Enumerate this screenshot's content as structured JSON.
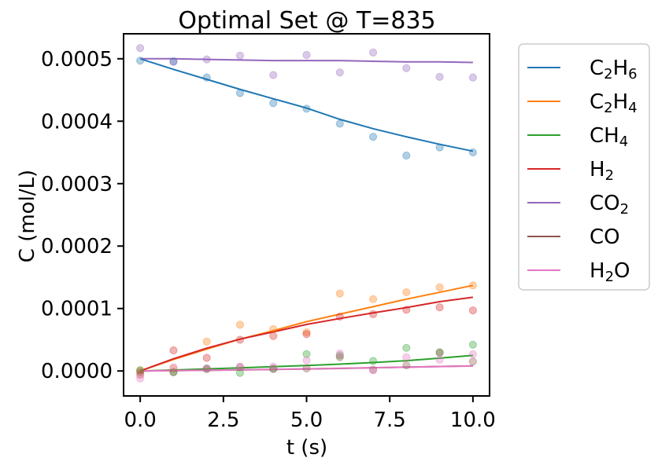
{
  "chart_data": {
    "type": "line",
    "title": "Optimal Set @ T=835",
    "xlabel": "t (s)",
    "ylabel": "C (mol/L)",
    "xlim": [
      -0.5,
      10.5
    ],
    "ylim": [
      -4e-05,
      0.00054
    ],
    "x_ticks": [
      0,
      2.5,
      5,
      7.5,
      10
    ],
    "x_tick_labels": [
      "0.0",
      "2.5",
      "5.0",
      "7.5",
      "10.0"
    ],
    "y_ticks": [
      0,
      0.0001,
      0.0002,
      0.0003,
      0.0004,
      0.0005
    ],
    "y_tick_labels": [
      "0.0000",
      "0.0001",
      "0.0002",
      "0.0003",
      "0.0004",
      "0.0005"
    ],
    "grid": false,
    "legend_position": "outside-right",
    "markers_x": [
      0,
      1,
      2,
      3,
      4,
      5,
      6,
      7,
      8,
      9,
      10
    ],
    "series": [
      {
        "name": "C2H6",
        "name_base": "C",
        "name_sub1": "2",
        "name_mid": "H",
        "name_sub2": "6",
        "color": "#1f77b4",
        "fit": {
          "t": [
            0,
            1,
            2,
            3,
            4,
            5,
            6,
            7,
            8,
            9,
            10
          ],
          "c": [
            0.0005,
            0.000483,
            0.000467,
            0.000451,
            0.000436,
            0.000421,
            0.000403,
            0.000388,
            0.000375,
            0.000363,
            0.000352
          ]
        },
        "observed": [
          0.000497,
          0.000496,
          0.00047,
          0.000445,
          0.000429,
          0.00042,
          0.000396,
          0.000375,
          0.000345,
          0.000358,
          0.00035
        ]
      },
      {
        "name": "C2H4",
        "name_base": "C",
        "name_sub1": "2",
        "name_mid": "H",
        "name_sub2": "4",
        "color": "#ff7f0e",
        "fit": {
          "t": [
            0,
            1,
            2,
            3,
            4,
            5,
            6,
            7,
            8,
            9,
            10
          ],
          "c": [
            0,
            1.85e-05,
            3.5e-05,
            5.1e-05,
            6.45e-05,
            7.9e-05,
            9.1e-05,
            0.000103,
            0.000115,
            0.000126,
            0.000137
          ]
        },
        "observed": [
          1e-06,
          4e-06,
          4.7e-05,
          7.4e-05,
          6.7e-05,
          6.2e-05,
          0.000124,
          0.000115,
          0.000126,
          0.000134,
          0.000137
        ]
      },
      {
        "name": "CH4",
        "name_base": "CH",
        "name_sub1": "4",
        "name_mid": "",
        "name_sub2": "",
        "color": "#2ca02c",
        "fit": {
          "t": [
            0,
            1,
            2,
            3,
            4,
            5,
            6,
            7,
            8,
            9,
            10
          ],
          "c": [
            0,
            1.5e-06,
            3.2e-06,
            5e-06,
            6.8e-06,
            8.8e-06,
            1.1e-05,
            1.34e-05,
            1.65e-05,
            2.05e-05,
            2.5e-05
          ]
        },
        "observed": [
          1e-06,
          -2e-06,
          4e-06,
          -3e-06,
          4e-06,
          2.7e-05,
          2.5e-05,
          1.6e-05,
          3.7e-05,
          3e-05,
          4.2e-05
        ]
      },
      {
        "name": "H2",
        "name_base": "H",
        "name_sub1": "2",
        "name_mid": "",
        "name_sub2": "",
        "color": "#d62728",
        "fit": {
          "t": [
            0,
            1,
            2,
            3,
            4,
            5,
            6,
            7,
            8,
            9,
            10
          ],
          "c": [
            0,
            1.95e-05,
            3.65e-05,
            5.1e-05,
            6.25e-05,
            7.45e-05,
            8.4e-05,
            9.3e-05,
            0.0001015,
            0.000111,
            0.000118
          ]
        },
        "observed": [
          -6e-06,
          3.3e-05,
          2.1e-05,
          5e-05,
          5.6e-05,
          5.9e-05,
          8.7e-05,
          9.1e-05,
          9.8e-05,
          0.000102,
          9.7e-05
        ]
      },
      {
        "name": "CO2",
        "name_base": "CO",
        "name_sub1": "2",
        "name_mid": "",
        "name_sub2": "",
        "color": "#9467bd",
        "fit": {
          "t": [
            0,
            1,
            2,
            3,
            4,
            5,
            6,
            7,
            8,
            9,
            10
          ],
          "c": [
            0.0005,
            0.0005,
            0.000499,
            0.000498,
            0.000497,
            0.000497,
            0.000497,
            0.000496,
            0.000495,
            0.000495,
            0.000494
          ]
        },
        "observed": [
          0.000517,
          0.000495,
          0.000499,
          0.000505,
          0.000474,
          0.000506,
          0.000478,
          0.00051,
          0.000485,
          0.000471,
          0.00047
        ]
      },
      {
        "name": "CO",
        "name_base": "CO",
        "name_sub1": "",
        "name_mid": "",
        "name_sub2": "",
        "color": "#8c564b",
        "fit": {
          "t": [
            0,
            1,
            2,
            3,
            4,
            5,
            6,
            7,
            8,
            9,
            10
          ],
          "c": [
            0,
            5e-07,
            1.1e-06,
            1.7e-06,
            2.4e-06,
            3.2e-06,
            4.1e-06,
            5.1e-06,
            6.1e-06,
            7.1e-06,
            8.2e-06
          ]
        },
        "observed": [
          -2e-06,
          -2e-06,
          3e-06,
          6e-06,
          3e-06,
          4e-06,
          2.2e-05,
          2e-06,
          9e-06,
          2.9e-05,
          1.5e-05
        ]
      },
      {
        "name": "H2O",
        "name_base": "H",
        "name_sub1": "2",
        "name_mid": "O",
        "name_sub2": "",
        "color": "#e377c2",
        "fit": {
          "t": [
            0,
            1,
            2,
            3,
            4,
            5,
            6,
            7,
            8,
            9,
            10
          ],
          "c": [
            0,
            6e-07,
            1.2e-06,
            1.9e-06,
            2.6e-06,
            3.4e-06,
            4.3e-06,
            5.2e-06,
            6.1e-06,
            7e-06,
            7.9e-06
          ]
        },
        "observed": [
          -1.2e-05,
          6e-06,
          4e-06,
          7e-06,
          7e-06,
          1.7e-05,
          2.8e-05,
          1e-06,
          2.2e-05,
          1.8e-05,
          2.7e-05
        ]
      }
    ]
  }
}
